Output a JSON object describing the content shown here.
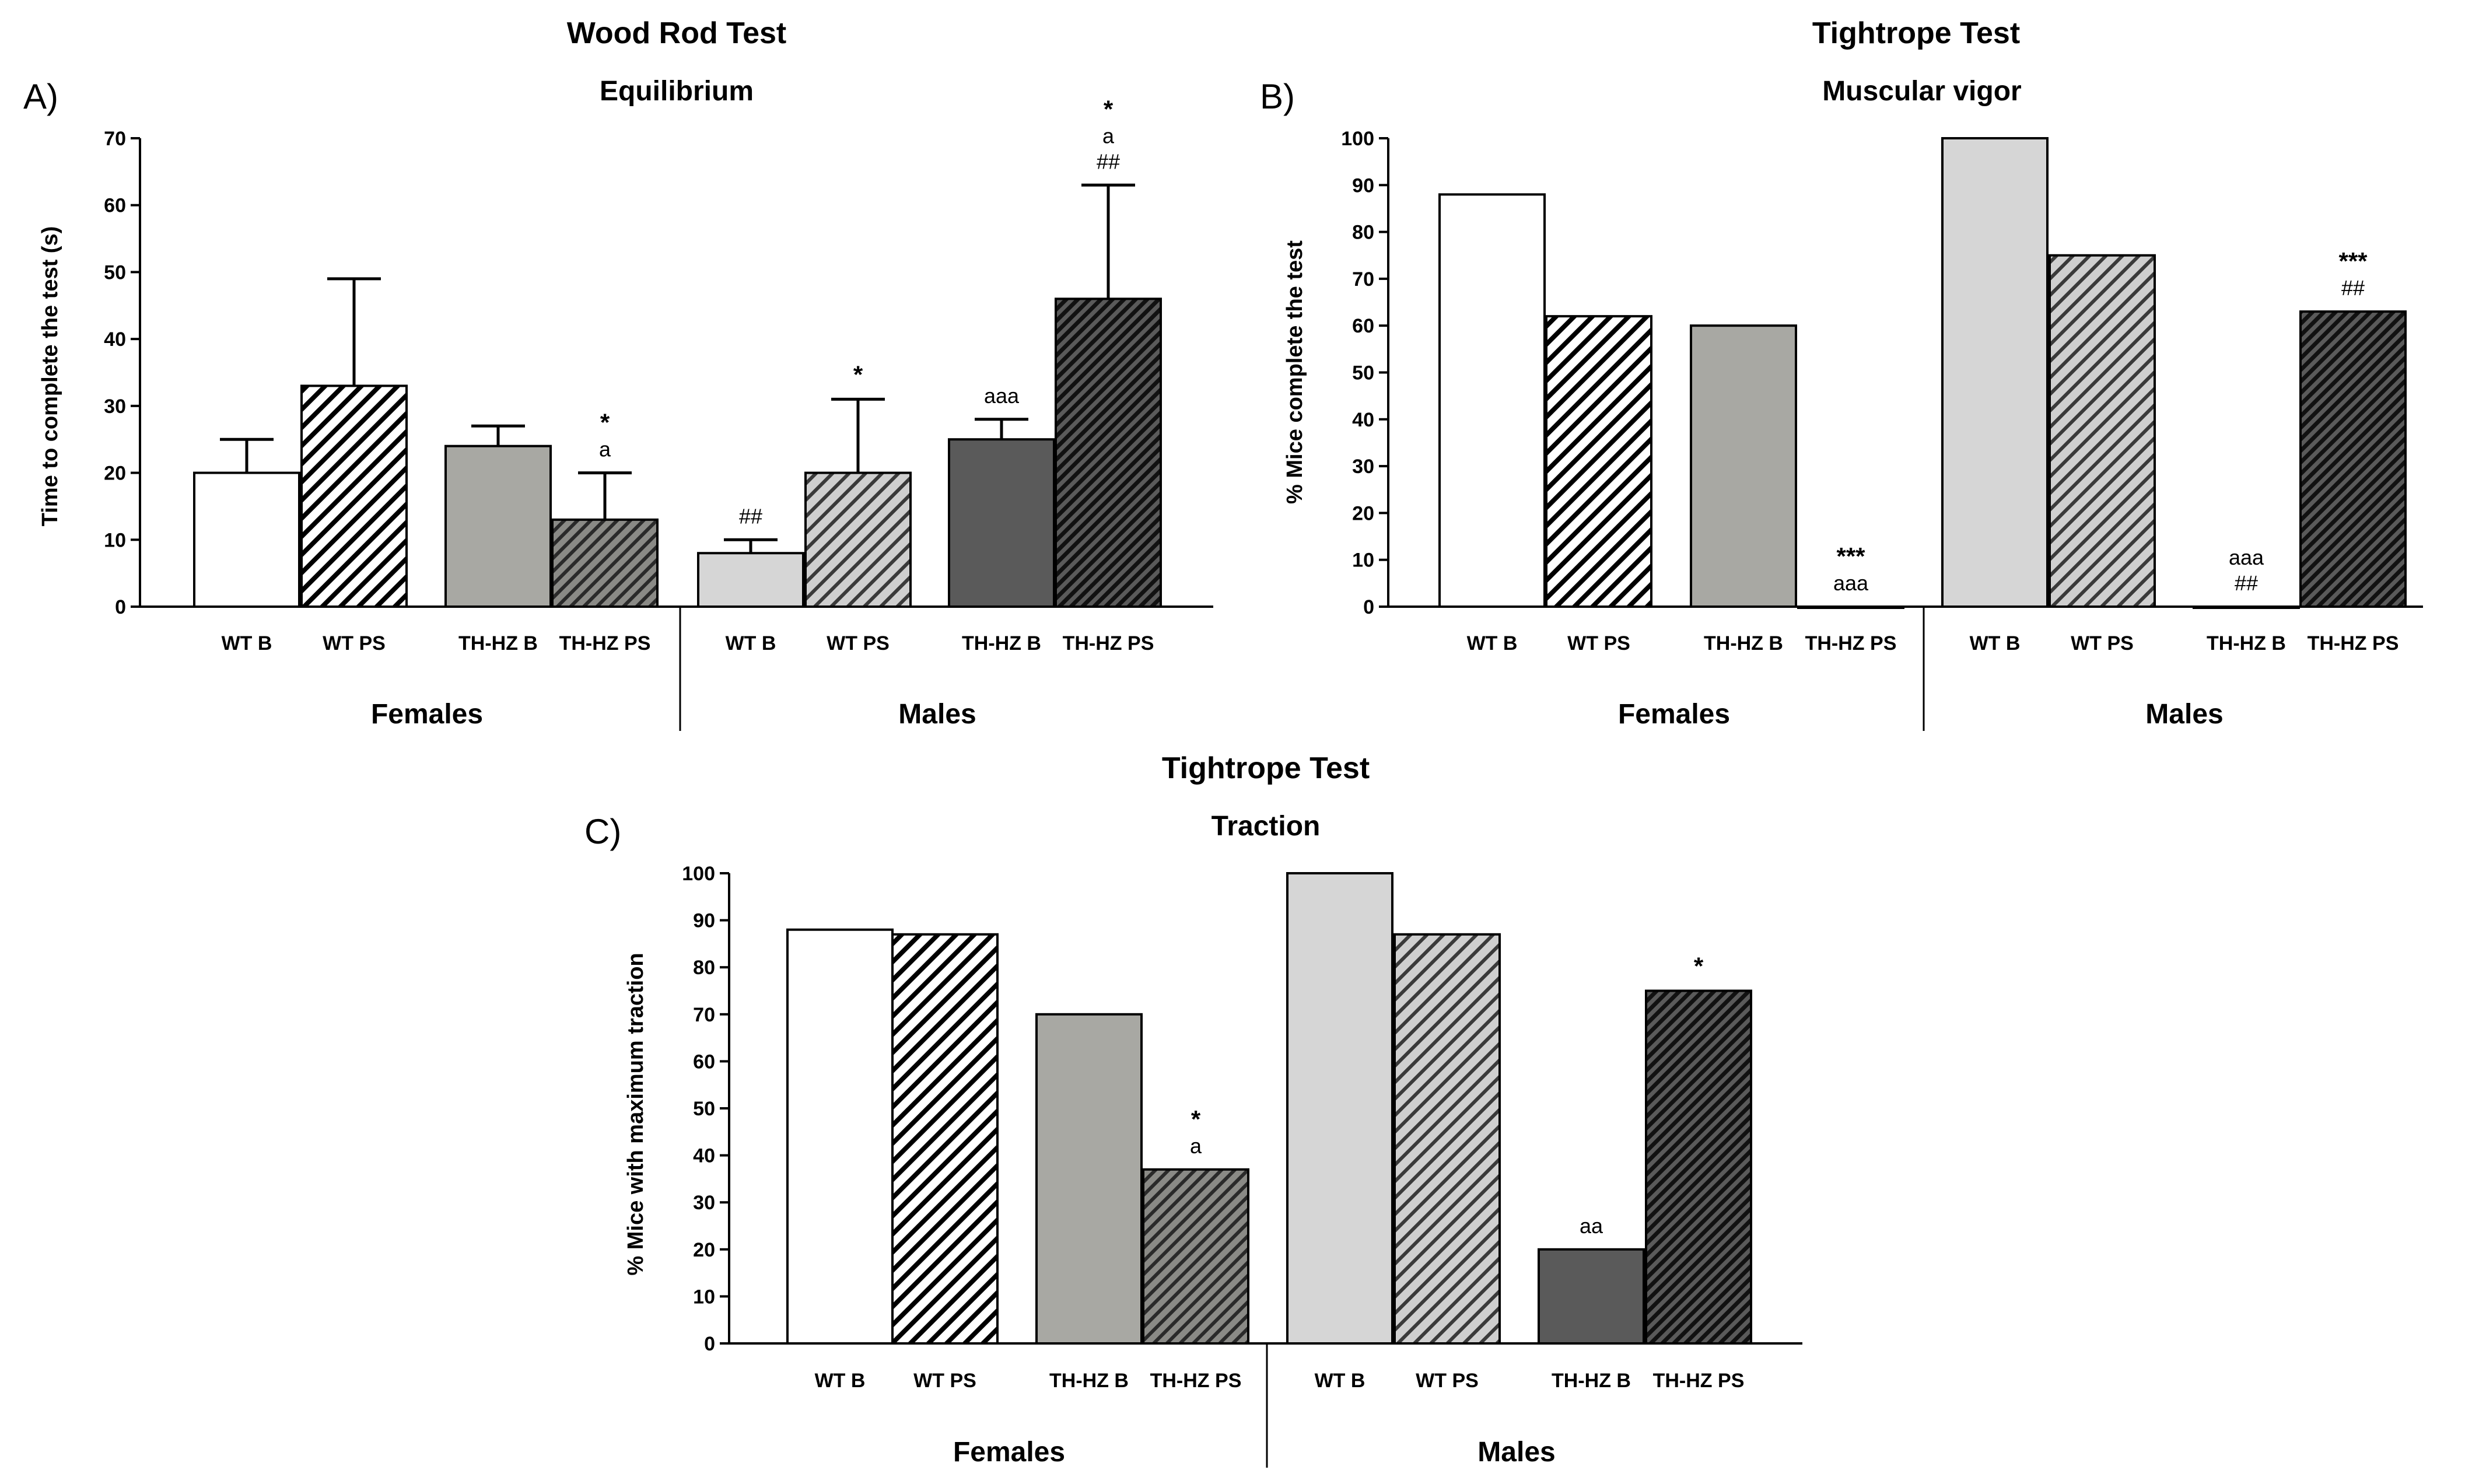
{
  "colors": {
    "white": "#ffffff",
    "light_gray": "#d6d6d6",
    "mid_gray": "#a8a8a3",
    "dark_gray": "#5a5a5a",
    "near_black": "#2c2c2c",
    "axis": "#000000"
  },
  "chart_data": [
    {
      "panel": "A)",
      "type": "bar",
      "title": "Wood Rod Test",
      "subtitle": "Equilibrium",
      "ylabel": "Time to complete the test (s)",
      "ylim": [
        0,
        70
      ],
      "yticks": [
        0,
        10,
        20,
        30,
        40,
        50,
        60,
        70
      ],
      "groups": [
        "Females",
        "Males"
      ],
      "bars": [
        {
          "label": "WT B",
          "group": "Females",
          "value": 20,
          "error": 5,
          "fill": "white",
          "pattern": "none",
          "annotations": []
        },
        {
          "label": "WT PS",
          "group": "Females",
          "value": 33,
          "error": 16,
          "fill": "white",
          "pattern": "hatch",
          "annotations": []
        },
        {
          "label": "TH-HZ B",
          "group": "Females",
          "value": 24,
          "error": 3,
          "fill": "mid_gray",
          "pattern": "none",
          "annotations": []
        },
        {
          "label": "TH-HZ PS",
          "group": "Females",
          "value": 13,
          "error": 7,
          "fill": "mid_gray",
          "pattern": "hatch",
          "annotations": [
            "*",
            "a"
          ]
        },
        {
          "label": "WT B",
          "group": "Males",
          "value": 8,
          "error": 2,
          "fill": "light_gray",
          "pattern": "none",
          "annotations": [
            "##"
          ]
        },
        {
          "label": "WT PS",
          "group": "Males",
          "value": 20,
          "error": 11,
          "fill": "light_gray",
          "pattern": "hatch",
          "annotations": [
            "*"
          ]
        },
        {
          "label": "TH-HZ B",
          "group": "Males",
          "value": 25,
          "error": 3,
          "fill": "dark_gray",
          "pattern": "none",
          "annotations": [
            "aaa"
          ]
        },
        {
          "label": "TH-HZ PS",
          "group": "Males",
          "value": 46,
          "error": 17,
          "fill": "near_black",
          "pattern": "hatch",
          "annotations": [
            "*",
            "a",
            "##"
          ]
        }
      ]
    },
    {
      "panel": "B)",
      "type": "bar",
      "title": "Tightrope Test",
      "subtitle": "Muscular vigor",
      "ylabel": "% Mice complete the test",
      "ylim": [
        0,
        100
      ],
      "yticks": [
        0,
        10,
        20,
        30,
        40,
        50,
        60,
        70,
        80,
        90,
        100
      ],
      "groups": [
        "Females",
        "Males"
      ],
      "bars": [
        {
          "label": "WT B",
          "group": "Females",
          "value": 88,
          "fill": "white",
          "pattern": "none",
          "annotations": []
        },
        {
          "label": "WT PS",
          "group": "Females",
          "value": 62,
          "fill": "white",
          "pattern": "hatch",
          "annotations": []
        },
        {
          "label": "TH-HZ B",
          "group": "Females",
          "value": 60,
          "fill": "mid_gray",
          "pattern": "none",
          "annotations": []
        },
        {
          "label": "TH-HZ PS",
          "group": "Females",
          "value": 0,
          "fill": "mid_gray",
          "pattern": "hatch",
          "annotations": [
            "***",
            "aaa"
          ]
        },
        {
          "label": "WT B",
          "group": "Males",
          "value": 100,
          "fill": "light_gray",
          "pattern": "none",
          "annotations": []
        },
        {
          "label": "WT PS",
          "group": "Males",
          "value": 75,
          "fill": "light_gray",
          "pattern": "hatch",
          "annotations": []
        },
        {
          "label": "TH-HZ B",
          "group": "Males",
          "value": 0,
          "fill": "dark_gray",
          "pattern": "none",
          "annotations": [
            "aaa",
            "##"
          ]
        },
        {
          "label": "TH-HZ PS",
          "group": "Males",
          "value": 63,
          "fill": "near_black",
          "pattern": "hatch",
          "annotations": [
            "***",
            "##"
          ]
        }
      ]
    },
    {
      "panel": "C)",
      "type": "bar",
      "title": "Tightrope Test",
      "subtitle": "Traction",
      "ylabel": "% Mice with maximum traction",
      "ylim": [
        0,
        100
      ],
      "yticks": [
        0,
        10,
        20,
        30,
        40,
        50,
        60,
        70,
        80,
        90,
        100
      ],
      "groups": [
        "Females",
        "Males"
      ],
      "bars": [
        {
          "label": "WT B",
          "group": "Females",
          "value": 88,
          "fill": "white",
          "pattern": "none",
          "annotations": []
        },
        {
          "label": "WT PS",
          "group": "Females",
          "value": 87,
          "fill": "white",
          "pattern": "hatch",
          "annotations": []
        },
        {
          "label": "TH-HZ B",
          "group": "Females",
          "value": 70,
          "fill": "mid_gray",
          "pattern": "none",
          "annotations": []
        },
        {
          "label": "TH-HZ PS",
          "group": "Females",
          "value": 37,
          "fill": "mid_gray",
          "pattern": "hatch",
          "annotations": [
            "*",
            "a"
          ]
        },
        {
          "label": "WT B",
          "group": "Males",
          "value": 100,
          "fill": "light_gray",
          "pattern": "none",
          "annotations": []
        },
        {
          "label": "WT PS",
          "group": "Males",
          "value": 87,
          "fill": "light_gray",
          "pattern": "hatch",
          "annotations": []
        },
        {
          "label": "TH-HZ B",
          "group": "Males",
          "value": 20,
          "fill": "dark_gray",
          "pattern": "none",
          "annotations": [
            "aa"
          ]
        },
        {
          "label": "TH-HZ PS",
          "group": "Males",
          "value": 75,
          "fill": "near_black",
          "pattern": "hatch",
          "annotations": [
            "*"
          ]
        }
      ]
    }
  ]
}
